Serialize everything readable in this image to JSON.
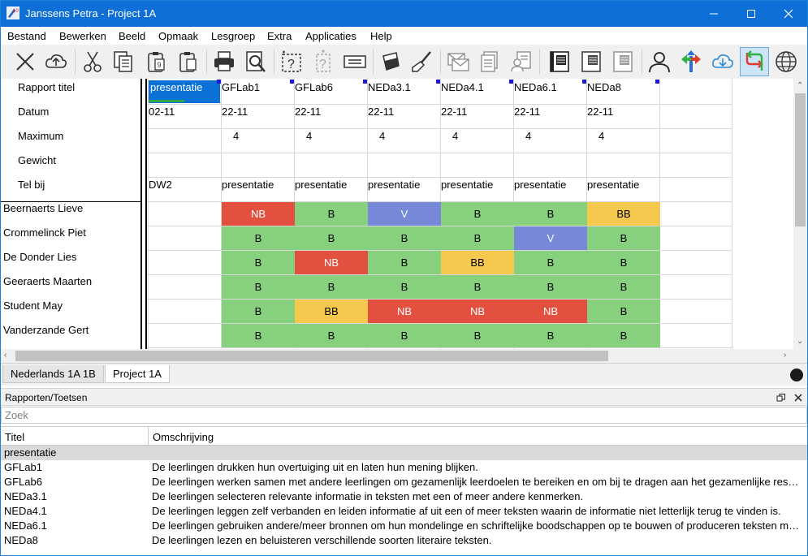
{
  "window": {
    "title": "Janssens Petra - Project 1A",
    "app_icon_text": "10"
  },
  "menu": [
    "Bestand",
    "Bewerken",
    "Beeld",
    "Opmaak",
    "Lesgroep",
    "Extra",
    "Applicaties",
    "Help"
  ],
  "toolbar_icons": [
    "close-x-icon",
    "cloud-upload-icon",
    "scissors-icon",
    "copy-icon",
    "paste-special-icon",
    "paste-icon",
    "print-icon",
    "print-preview-icon",
    "question-box-icon",
    "question-box-disabled-icon",
    "text-field-icon",
    "bucket-fill-icon",
    "brush-icon",
    "mail-icon",
    "documents-icon",
    "user-document-icon",
    "book-dark-icon",
    "book-medium-icon",
    "book-light-icon",
    "user-icon",
    "directions-icon",
    "cloud-download-icon",
    "sync-arrows-icon",
    "globe-icon"
  ],
  "grid": {
    "header_rows": [
      "Rapport titel",
      "Datum",
      "Maximum",
      "Gewicht",
      "Tel bij"
    ],
    "columns": [
      {
        "title": "presentatie",
        "date": "02-11",
        "max": "",
        "weight": "",
        "telbij": "DW2"
      },
      {
        "title": "GFLab1",
        "date": "22-11",
        "max": "4",
        "weight": "",
        "telbij": "presentatie"
      },
      {
        "title": "GFLab6",
        "date": "22-11",
        "max": "4",
        "weight": "",
        "telbij": "presentatie"
      },
      {
        "title": "NEDa3.1",
        "date": "22-11",
        "max": "4",
        "weight": "",
        "telbij": "presentatie"
      },
      {
        "title": "NEDa4.1",
        "date": "22-11",
        "max": "4",
        "weight": "",
        "telbij": "presentatie"
      },
      {
        "title": "NEDa6.1",
        "date": "22-11",
        "max": "4",
        "weight": "",
        "telbij": "presentatie"
      },
      {
        "title": "NEDa8",
        "date": "22-11",
        "max": "4",
        "weight": "",
        "telbij": "presentatie"
      }
    ],
    "students": [
      {
        "name": "Beernaerts Lieve",
        "grades": [
          "",
          "NB",
          "B",
          "V",
          "B",
          "B",
          "BB"
        ]
      },
      {
        "name": "Crommelinck Piet",
        "grades": [
          "",
          "B",
          "B",
          "B",
          "B",
          "V",
          "B"
        ]
      },
      {
        "name": "De Donder Lies",
        "grades": [
          "",
          "B",
          "NB",
          "B",
          "BB",
          "B",
          "B"
        ]
      },
      {
        "name": "Geeraerts Maarten",
        "grades": [
          "",
          "B",
          "B",
          "B",
          "B",
          "B",
          "B"
        ]
      },
      {
        "name": "Student May",
        "grades": [
          "",
          "B",
          "BB",
          "NB",
          "NB",
          "NB",
          "B"
        ]
      },
      {
        "name": "Vanderzande Gert",
        "grades": [
          "",
          "B",
          "B",
          "B",
          "B",
          "B",
          "B"
        ]
      }
    ],
    "grade_colors": {
      "B": "#86d07e",
      "NB": "#e4503f",
      "V": "#7788d8",
      "BB": "#f5c84e"
    }
  },
  "tabs": [
    {
      "label": "Nederlands 1A 1B",
      "selected": true
    },
    {
      "label": "Project 1A",
      "selected": false
    }
  ],
  "panel": {
    "title": "Rapporten/Toetsen",
    "search_placeholder": "Zoek",
    "col_title": "Titel",
    "col_desc": "Omschrijving",
    "rows": [
      {
        "title": "presentatie",
        "desc": ""
      },
      {
        "title": "GFLab1",
        "desc": "De leerlingen drukken hun overtuiging uit en laten hun mening blijken."
      },
      {
        "title": "GFLab6",
        "desc": "De leerlingen werken samen met andere leerlingen om gezamenlijk leerdoelen te bereiken en om bij te dragen aan het gezamenlijke resultaat."
      },
      {
        "title": "NEDa3.1",
        "desc": "De leerlingen selecteren relevante informatie in teksten met een of meer andere kenmerken."
      },
      {
        "title": "NEDa4.1",
        "desc": "De leerlingen leggen zelf verbanden en leiden informatie af uit een of meer teksten waarin de informatie niet letterlijk terug te vinden is."
      },
      {
        "title": "NEDa6.1",
        "desc": "De leerlingen gebruiken andere/meer bronnen om hun mondelinge en schriftelijke boodschappen op te bouwen of produceren teksten met een welbepaalde structuur."
      },
      {
        "title": "NEDa8",
        "desc": "De leerlingen lezen en beluisteren verschillende soorten literaire teksten."
      }
    ]
  }
}
